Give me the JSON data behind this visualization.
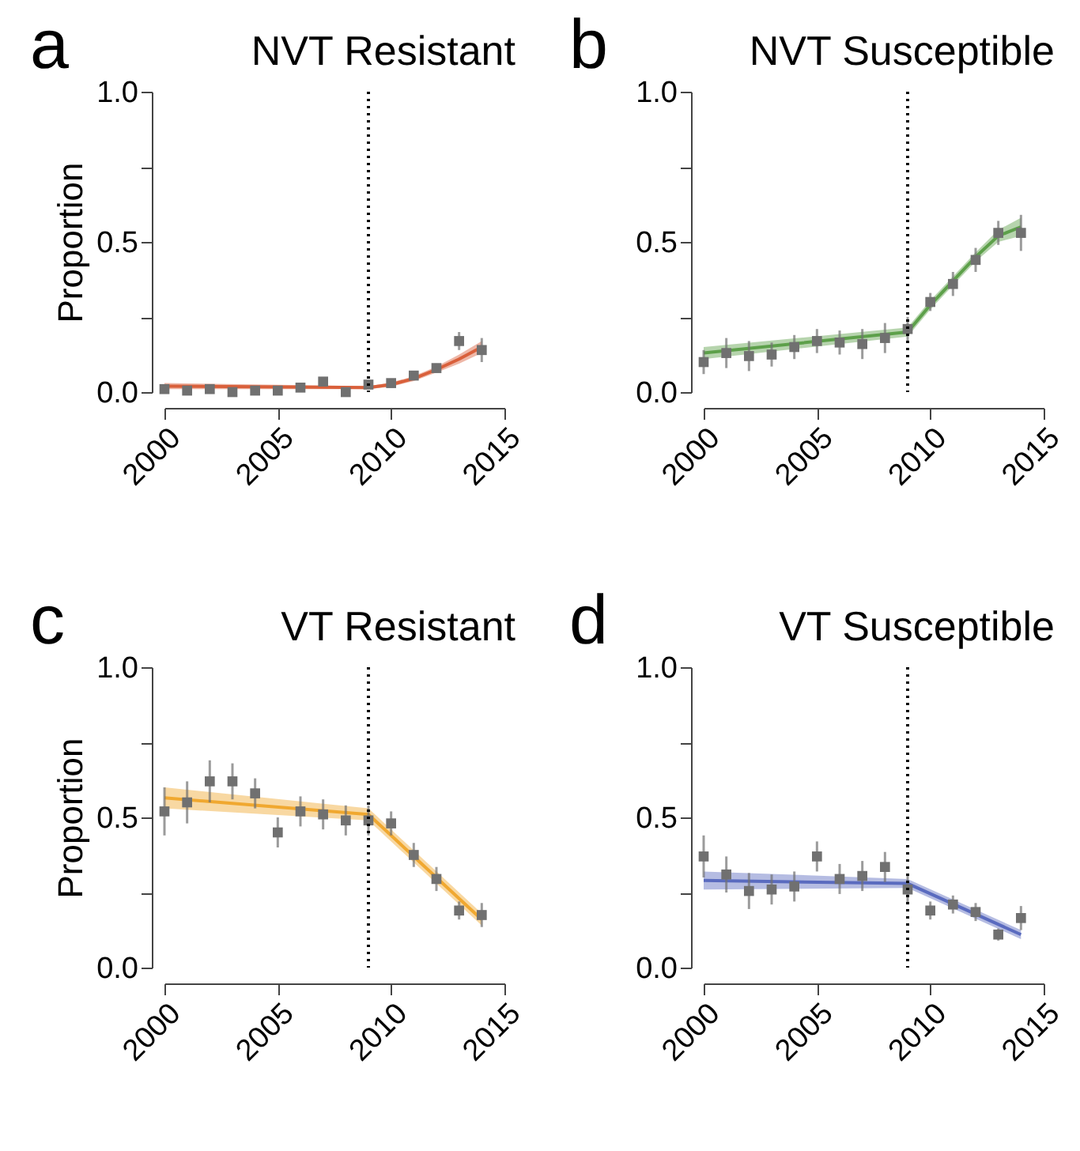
{
  "chart_data": [
    {
      "type": "scatter",
      "title": "NVT Resistant",
      "annotations": [
        "a"
      ],
      "ylabel": "Proportion",
      "xlim": [
        2000,
        2015
      ],
      "xticks": [
        2000,
        2005,
        2010,
        2015
      ],
      "ylim": [
        0,
        1
      ],
      "yticks": [
        {
          "value": 0,
          "label": "0.0"
        },
        {
          "value": 0.25,
          "label": null
        },
        {
          "value": 0.5,
          "label": "0.5"
        },
        {
          "value": 0.75,
          "label": null
        },
        {
          "value": 1,
          "label": "1.0"
        }
      ],
      "ref_lines": [
        {
          "axis": "x",
          "value": 2009,
          "color": "#000000",
          "line_style": "dotted"
        }
      ],
      "series": [
        {
          "type": "line",
          "marker": "none",
          "color": "#d9603b",
          "x": [
            2000,
            2009,
            2010,
            2011,
            2012,
            2013,
            2014
          ],
          "values": [
            0.02,
            0.015,
            0.025,
            0.045,
            0.075,
            0.11,
            0.15
          ],
          "lower": [
            0.01,
            0.01,
            0.018,
            0.037,
            0.065,
            0.095,
            0.13
          ],
          "upper": [
            0.03,
            0.02,
            0.032,
            0.053,
            0.085,
            0.125,
            0.17
          ]
        },
        {
          "type": "scatter",
          "marker": "square",
          "color": "#707070",
          "x": [
            2000,
            2001,
            2002,
            2003,
            2004,
            2005,
            2006,
            2007,
            2008,
            2009,
            2010,
            2011,
            2012,
            2013,
            2014
          ],
          "values": [
            0.01,
            0.005,
            0.01,
            0.0,
            0.005,
            0.005,
            0.015,
            0.035,
            0.0,
            0.025,
            0.03,
            0.055,
            0.08,
            0.17,
            0.14
          ],
          "errors": [
            0.015,
            0.01,
            0.01,
            0.01,
            0.01,
            0.01,
            0.01,
            0.015,
            0.01,
            0.015,
            0.01,
            0.01,
            0.015,
            0.03,
            0.04
          ]
        }
      ]
    },
    {
      "type": "scatter",
      "title": "NVT Susceptible",
      "annotations": [
        "b"
      ],
      "xlim": [
        2000,
        2015
      ],
      "xticks": [
        2000,
        2005,
        2010,
        2015
      ],
      "ylim": [
        0,
        1
      ],
      "yticks": [
        {
          "value": 0,
          "label": "0.0"
        },
        {
          "value": 0.25,
          "label": null
        },
        {
          "value": 0.5,
          "label": "0.5"
        },
        {
          "value": 0.75,
          "label": null
        },
        {
          "value": 1,
          "label": "1.0"
        }
      ],
      "ref_lines": [
        {
          "axis": "x",
          "value": 2009,
          "color": "#000000",
          "line_style": "dotted"
        }
      ],
      "series": [
        {
          "type": "line",
          "marker": "none",
          "color": "#5da04a",
          "x": [
            2000,
            2009,
            2010,
            2011,
            2012,
            2013,
            2014
          ],
          "values": [
            0.13,
            0.2,
            0.29,
            0.37,
            0.45,
            0.52,
            0.55
          ],
          "lower": [
            0.11,
            0.185,
            0.275,
            0.355,
            0.435,
            0.5,
            0.52
          ],
          "upper": [
            0.15,
            0.215,
            0.305,
            0.385,
            0.465,
            0.54,
            0.58
          ]
        },
        {
          "type": "scatter",
          "marker": "square",
          "color": "#707070",
          "x": [
            2000,
            2001,
            2002,
            2003,
            2004,
            2005,
            2006,
            2007,
            2008,
            2009,
            2010,
            2011,
            2012,
            2013,
            2014
          ],
          "values": [
            0.1,
            0.13,
            0.12,
            0.125,
            0.15,
            0.17,
            0.165,
            0.16,
            0.18,
            0.21,
            0.3,
            0.36,
            0.44,
            0.53,
            0.53
          ],
          "errors": [
            0.04,
            0.05,
            0.05,
            0.04,
            0.04,
            0.04,
            0.04,
            0.05,
            0.05,
            0.04,
            0.03,
            0.04,
            0.04,
            0.04,
            0.06
          ]
        }
      ]
    },
    {
      "type": "scatter",
      "title": "VT Resistant",
      "annotations": [
        "c"
      ],
      "ylabel": "Proportion",
      "xlim": [
        2000,
        2015
      ],
      "xticks": [
        2000,
        2005,
        2010,
        2015
      ],
      "ylim": [
        0,
        1
      ],
      "yticks": [
        {
          "value": 0,
          "label": "0.0"
        },
        {
          "value": 0.25,
          "label": null
        },
        {
          "value": 0.5,
          "label": "0.5"
        },
        {
          "value": 0.75,
          "label": null
        },
        {
          "value": 1,
          "label": "1.0"
        }
      ],
      "ref_lines": [
        {
          "axis": "x",
          "value": 2009,
          "color": "#000000",
          "line_style": "dotted"
        }
      ],
      "series": [
        {
          "type": "line",
          "marker": "none",
          "color": "#f0a830",
          "x": [
            2000,
            2009,
            2014
          ],
          "values": [
            0.565,
            0.51,
            0.16
          ],
          "lower": [
            0.53,
            0.49,
            0.14
          ],
          "upper": [
            0.6,
            0.53,
            0.18
          ]
        },
        {
          "type": "scatter",
          "marker": "square",
          "color": "#707070",
          "x": [
            2000,
            2001,
            2002,
            2003,
            2004,
            2005,
            2006,
            2007,
            2008,
            2009,
            2010,
            2011,
            2012,
            2013,
            2014
          ],
          "values": [
            0.52,
            0.55,
            0.62,
            0.62,
            0.58,
            0.45,
            0.52,
            0.51,
            0.49,
            0.49,
            0.48,
            0.375,
            0.295,
            0.19,
            0.175
          ],
          "errors": [
            0.08,
            0.07,
            0.07,
            0.06,
            0.05,
            0.05,
            0.05,
            0.05,
            0.05,
            0.05,
            0.04,
            0.04,
            0.04,
            0.03,
            0.04
          ]
        }
      ]
    },
    {
      "type": "scatter",
      "title": "VT Susceptible",
      "annotations": [
        "d"
      ],
      "xlim": [
        2000,
        2015
      ],
      "xticks": [
        2000,
        2005,
        2010,
        2015
      ],
      "ylim": [
        0,
        1
      ],
      "yticks": [
        {
          "value": 0,
          "label": "0.0"
        },
        {
          "value": 0.25,
          "label": null
        },
        {
          "value": 0.5,
          "label": "0.5"
        },
        {
          "value": 0.75,
          "label": null
        },
        {
          "value": 1,
          "label": "1.0"
        }
      ],
      "ref_lines": [
        {
          "axis": "x",
          "value": 2009,
          "color": "#000000",
          "line_style": "dotted"
        }
      ],
      "series": [
        {
          "type": "line",
          "marker": "none",
          "color": "#5a6bbf",
          "x": [
            2000,
            2009,
            2014
          ],
          "values": [
            0.29,
            0.28,
            0.11
          ],
          "lower": [
            0.26,
            0.265,
            0.095
          ],
          "upper": [
            0.32,
            0.295,
            0.125
          ]
        },
        {
          "type": "scatter",
          "marker": "square",
          "color": "#707070",
          "x": [
            2000,
            2001,
            2002,
            2003,
            2004,
            2005,
            2006,
            2007,
            2008,
            2009,
            2010,
            2011,
            2012,
            2013,
            2014
          ],
          "values": [
            0.37,
            0.31,
            0.255,
            0.26,
            0.27,
            0.37,
            0.295,
            0.305,
            0.335,
            0.26,
            0.19,
            0.21,
            0.185,
            0.11,
            0.165
          ],
          "errors": [
            0.07,
            0.06,
            0.06,
            0.05,
            0.05,
            0.05,
            0.05,
            0.05,
            0.05,
            0.05,
            0.03,
            0.03,
            0.03,
            0.02,
            0.04
          ]
        }
      ]
    }
  ]
}
